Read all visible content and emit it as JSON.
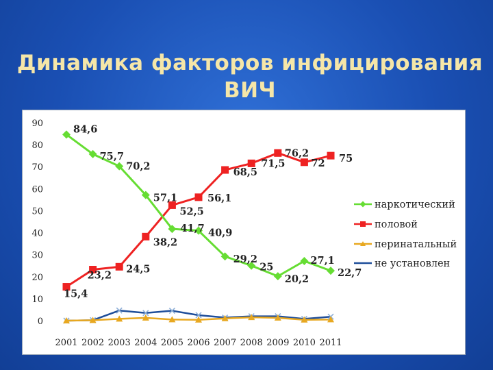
{
  "slide": {
    "title_line1": "Динамика факторов инфицирования",
    "title_line2": "ВИЧ"
  },
  "chart_data": {
    "type": "line",
    "title": "",
    "xlabel": "",
    "ylabel": "",
    "ylim": [
      0,
      90
    ],
    "yticks": [
      "0",
      "10",
      "20",
      "30",
      "40",
      "50",
      "60",
      "70",
      "80",
      "90"
    ],
    "categories": [
      "2001",
      "2002",
      "2003",
      "2004",
      "2005",
      "2006",
      "2007",
      "2008",
      "2009",
      "2010",
      "2011"
    ],
    "grid": false,
    "legend_position": "right",
    "series": [
      {
        "name": "наркотический",
        "color": "#66dd33",
        "marker": "diamond",
        "values": [
          84.6,
          75.7,
          70.2,
          57.1,
          41.7,
          40.9,
          29.2,
          25,
          20.2,
          27.1,
          22.7
        ],
        "labels": [
          "84,6",
          "75,7",
          "70,2",
          "57,1",
          "41,7",
          "40,9",
          "29,2",
          "25",
          "20,2",
          "27,1",
          "22,7"
        ]
      },
      {
        "name": "половой",
        "color": "#ee2222",
        "marker": "square",
        "values": [
          15.4,
          23.2,
          24.5,
          38.2,
          52.5,
          56.1,
          68.5,
          71.5,
          76.2,
          72,
          75
        ],
        "labels": [
          "15,4",
          "23,2",
          "24,5",
          "38,2",
          "52,5",
          "56,1",
          "68,5",
          "71,5",
          "76,2",
          "72",
          "75"
        ]
      },
      {
        "name": "перинатальный",
        "color": "#e8a820",
        "marker": "triangle",
        "values": [
          0,
          0.2,
          0.8,
          1.3,
          0.5,
          0.4,
          1.0,
          1.5,
          1.3,
          0.4,
          0.5
        ],
        "labels": []
      },
      {
        "name": "не установлен",
        "color": "#1f4e9a",
        "marker": "x",
        "values": [
          0,
          0.2,
          4.6,
          3.5,
          4.5,
          2.5,
          1.4,
          2.0,
          2.0,
          0.8,
          1.8
        ],
        "labels": []
      }
    ]
  }
}
